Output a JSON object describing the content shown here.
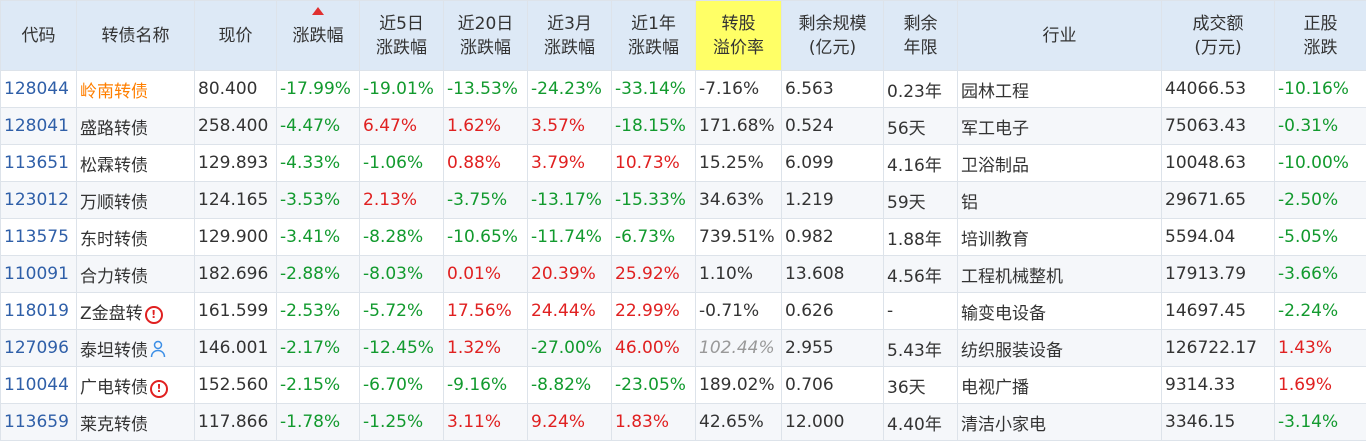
{
  "headers": {
    "code": "代码",
    "name": "转债名称",
    "price": "现价",
    "change": "涨跌幅",
    "chg5d": [
      "近5日",
      "涨跌幅"
    ],
    "chg20d": [
      "近20日",
      "涨跌幅"
    ],
    "chg3m": [
      "近3月",
      "涨跌幅"
    ],
    "chg1y": [
      "近1年",
      "涨跌幅"
    ],
    "premium": [
      "转股",
      "溢价率"
    ],
    "scale": [
      "剩余规模",
      "(亿元)"
    ],
    "term": [
      "剩余",
      "年限"
    ],
    "industry": "行业",
    "turnover": [
      "成交额",
      "(万元)"
    ],
    "stock_chg": [
      "正股",
      "涨跌"
    ]
  },
  "colors": {
    "up": "#e02020",
    "down": "#129a2e",
    "code": "#2f5fa8",
    "highlight_header": "#ffff66",
    "header_bg": "#dde9f6"
  },
  "rows": [
    {
      "code": "128044",
      "name": "岭南转债",
      "name_color": "orange",
      "icon": "",
      "price": "80.400",
      "change": "-17.99%",
      "chg5d": "-19.01%",
      "chg20d": "-13.53%",
      "chg3m": "-24.23%",
      "chg1y": "-33.14%",
      "premium": "-7.16%",
      "scale": "6.563",
      "term": "0.23年",
      "industry": "园林工程",
      "turnover": "44066.53",
      "stock_chg": "-10.16%"
    },
    {
      "code": "128041",
      "name": "盛路转债",
      "icon": "",
      "price": "258.400",
      "change": "-4.47%",
      "chg5d": "6.47%",
      "chg20d": "1.62%",
      "chg3m": "3.57%",
      "chg1y": "-18.15%",
      "premium": "171.68%",
      "scale": "0.524",
      "term": "56天",
      "industry": "军工电子",
      "turnover": "75063.43",
      "stock_chg": "-0.31%"
    },
    {
      "code": "113651",
      "name": "松霖转债",
      "icon": "",
      "price": "129.893",
      "change": "-4.33%",
      "chg5d": "-1.06%",
      "chg20d": "0.88%",
      "chg3m": "3.79%",
      "chg1y": "10.73%",
      "premium": "15.25%",
      "scale": "6.099",
      "term": "4.16年",
      "industry": "卫浴制品",
      "turnover": "10048.63",
      "stock_chg": "-10.00%"
    },
    {
      "code": "123012",
      "name": "万顺转债",
      "icon": "",
      "price": "124.165",
      "change": "-3.53%",
      "chg5d": "2.13%",
      "chg20d": "-3.75%",
      "chg3m": "-13.17%",
      "chg1y": "-15.33%",
      "premium": "34.63%",
      "scale": "1.219",
      "term": "59天",
      "industry": "铝",
      "turnover": "29671.65",
      "stock_chg": "-2.50%"
    },
    {
      "code": "113575",
      "name": "东时转债",
      "icon": "",
      "price": "129.900",
      "change": "-3.41%",
      "chg5d": "-8.28%",
      "chg20d": "-10.65%",
      "chg3m": "-11.74%",
      "chg1y": "-6.73%",
      "premium": "739.51%",
      "scale": "0.982",
      "term": "1.88年",
      "industry": "培训教育",
      "turnover": "5594.04",
      "stock_chg": "-5.05%"
    },
    {
      "code": "110091",
      "name": "合力转债",
      "icon": "",
      "price": "182.696",
      "change": "-2.88%",
      "chg5d": "-8.03%",
      "chg20d": "0.01%",
      "chg3m": "20.39%",
      "chg1y": "25.92%",
      "premium": "1.10%",
      "scale": "13.608",
      "term": "4.56年",
      "industry": "工程机械整机",
      "turnover": "17913.79",
      "stock_chg": "-3.66%"
    },
    {
      "code": "118019",
      "name": "Z金盘转",
      "icon": "warning-icon",
      "price": "161.599",
      "change": "-2.53%",
      "chg5d": "-5.72%",
      "chg20d": "17.56%",
      "chg3m": "24.44%",
      "chg1y": "22.99%",
      "premium": "-0.71%",
      "scale": "0.626",
      "term": "-",
      "industry": "输变电设备",
      "turnover": "14697.45",
      "stock_chg": "-2.24%"
    },
    {
      "code": "127096",
      "name": "泰坦转债",
      "icon": "user-icon",
      "price": "146.001",
      "change": "-2.17%",
      "chg5d": "-12.45%",
      "chg20d": "1.32%",
      "chg3m": "-27.00%",
      "chg1y": "46.00%",
      "premium": "102.44%",
      "premium_muted": true,
      "scale": "2.955",
      "term": "5.43年",
      "industry": "纺织服装设备",
      "turnover": "126722.17",
      "stock_chg": "1.43%"
    },
    {
      "code": "110044",
      "name": "广电转债",
      "icon": "warning-icon",
      "price": "152.560",
      "change": "-2.15%",
      "chg5d": "-6.70%",
      "chg20d": "-9.16%",
      "chg3m": "-8.82%",
      "chg1y": "-23.05%",
      "premium": "189.02%",
      "scale": "0.706",
      "term": "36天",
      "industry": "电视广播",
      "turnover": "9314.33",
      "stock_chg": "1.69%"
    },
    {
      "code": "113659",
      "name": "莱克转债",
      "icon": "",
      "price": "117.866",
      "change": "-1.78%",
      "chg5d": "-1.25%",
      "chg20d": "3.11%",
      "chg3m": "9.24%",
      "chg1y": "1.83%",
      "premium": "42.65%",
      "scale": "12.000",
      "term": "4.40年",
      "industry": "清洁小家电",
      "turnover": "3346.15",
      "stock_chg": "-3.14%"
    }
  ]
}
